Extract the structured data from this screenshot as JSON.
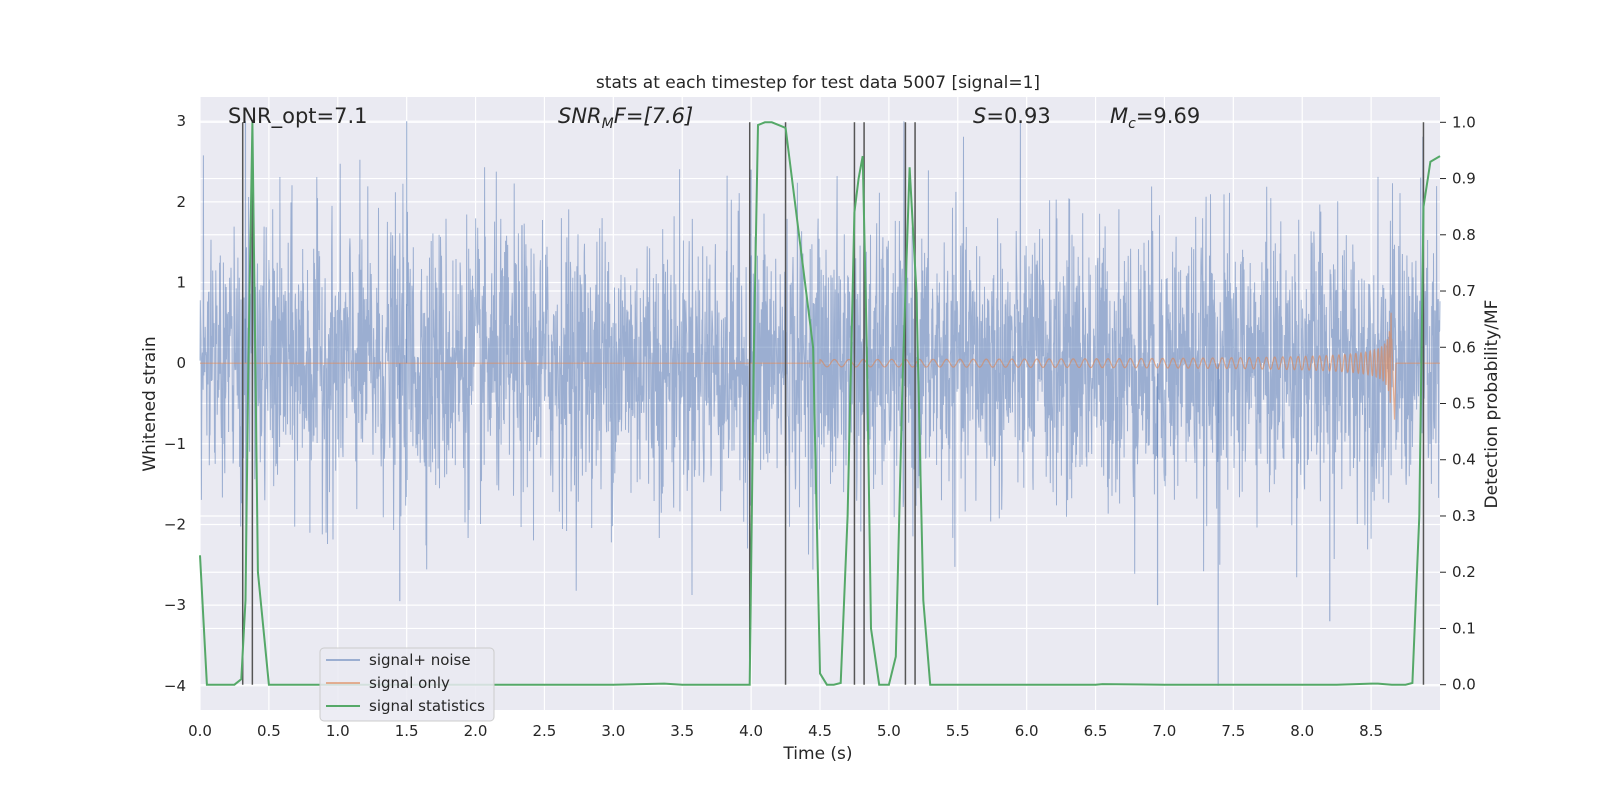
{
  "chart_data": {
    "type": "line",
    "title": "stats at each timestep for test data 5007 [signal=1]",
    "xlabel": "Time (s)",
    "ylabel": "Whitened strain",
    "y2label": "Detection probability/MF",
    "xlim": [
      0,
      9.0
    ],
    "ylim": [
      -4.3,
      3.3
    ],
    "y2lim": [
      -0.045,
      1.045
    ],
    "x_ticks": [
      "0.0",
      "0.5",
      "1.0",
      "1.5",
      "2.0",
      "2.5",
      "3.0",
      "3.5",
      "4.0",
      "4.5",
      "5.0",
      "5.5",
      "6.0",
      "6.5",
      "7.0",
      "7.5",
      "8.0",
      "8.5"
    ],
    "y_ticks": [
      "3",
      "2",
      "1",
      "0",
      "−1",
      "−2",
      "−3",
      "−4"
    ],
    "y2_ticks": [
      "1.0",
      "0.9",
      "0.8",
      "0.7",
      "0.6",
      "0.5",
      "0.4",
      "0.3",
      "0.2",
      "0.1",
      "0.0"
    ],
    "grid": true,
    "legend_position": "lower-left",
    "annotations": {
      "snr_opt": "SNR_opt=7.1",
      "snr_mf_main": "SNR",
      "snr_mf_sub": "M",
      "snr_mf_rest": "F=[7.6]",
      "s_main": "S",
      "s_rest": "=0.93",
      "mc_main": "M",
      "mc_sub": "c",
      "mc_rest": "=9.69"
    },
    "series": [
      {
        "name": "signal+ noise",
        "color": "#4c72b0",
        "description_values": "noise envelope",
        "values_summary": {
          "typical_abs_max": 2.0,
          "min": -4.0,
          "max": 3.0
        }
      },
      {
        "name": "signal only",
        "color": "#dd8452",
        "chirp": {
          "start": 4.5,
          "merger": 8.65,
          "end": 8.67,
          "peak_amplitude": 0.9
        }
      },
      {
        "name": "signal statistics",
        "color": "#55a868",
        "axis": "right",
        "x": [
          0.0,
          0.05,
          0.1,
          0.2,
          0.25,
          0.3,
          0.33,
          0.35,
          0.38,
          0.42,
          0.5,
          0.75,
          1.0,
          1.5,
          2.0,
          2.5,
          3.0,
          3.37,
          3.5,
          3.75,
          3.99,
          4.02,
          4.05,
          4.1,
          4.15,
          4.2,
          4.25,
          4.45,
          4.5,
          4.55,
          4.6,
          4.65,
          4.7,
          4.75,
          4.78,
          4.81,
          4.84,
          4.87,
          4.93,
          5.0,
          5.05,
          5.1,
          5.15,
          5.2,
          5.25,
          5.3,
          5.35,
          5.5,
          6.0,
          6.5,
          6.55,
          7.0,
          7.5,
          8.0,
          8.25,
          8.5,
          8.55,
          8.65,
          8.75,
          8.8,
          8.85,
          8.88,
          8.93,
          9.0
        ],
        "y": [
          0.23,
          0.0,
          0.0,
          0.0,
          0.0,
          0.01,
          0.15,
          0.55,
          1.0,
          0.2,
          0.0,
          0.0,
          0.0,
          0.0,
          0.0,
          0.0,
          0.0,
          0.002,
          0.0,
          0.0,
          0.0,
          0.6,
          0.995,
          1.0,
          1.0,
          0.995,
          0.99,
          0.6,
          0.02,
          0.0,
          0.0,
          0.003,
          0.3,
          0.84,
          0.9,
          0.94,
          0.6,
          0.1,
          0.0,
          0.0,
          0.05,
          0.55,
          0.92,
          0.7,
          0.15,
          0.0,
          0.0,
          0.0,
          0.0,
          0.0,
          0.001,
          0.0,
          0.0,
          0.0,
          0.0,
          0.002,
          0.002,
          0.0,
          0.0,
          0.003,
          0.3,
          0.85,
          0.93,
          0.94
        ]
      }
    ],
    "vertical_lines_x": [
      0.31,
      0.38,
      3.99,
      4.25,
      4.75,
      4.82,
      5.12,
      5.19,
      8.88
    ]
  }
}
